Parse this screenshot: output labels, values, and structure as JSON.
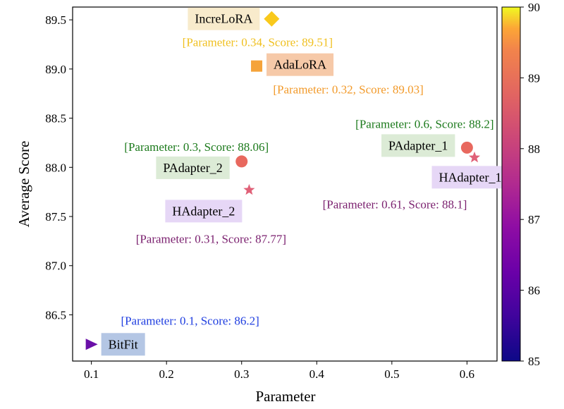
{
  "chart_data": {
    "type": "scatter",
    "xlabel": "Parameter",
    "ylabel": "Average Score",
    "xlim": [
      0.075,
      0.64
    ],
    "ylim": [
      86.03,
      89.63
    ],
    "xticks": [
      "0.1",
      "0.2",
      "0.3",
      "0.4",
      "0.5",
      "0.6"
    ],
    "yticks": [
      "86.5",
      "87.0",
      "87.5",
      "88.0",
      "88.5",
      "89.0",
      "89.5"
    ],
    "grid": false,
    "colorbar": {
      "range": [
        85,
        90
      ],
      "ticks": [
        "85",
        "86",
        "87",
        "88",
        "89",
        "90"
      ],
      "colormap": "plasma"
    },
    "points": [
      {
        "name": "IncreLoRA",
        "x": 0.34,
        "y": 89.51,
        "marker": "diamond",
        "color": "#f9c91c",
        "label_bg": "#f8ebcc",
        "annotation": "[Parameter: 0.34, Score: 89.51]",
        "annotation_color": "#f0c020"
      },
      {
        "name": "AdaLoRA",
        "x": 0.32,
        "y": 89.03,
        "marker": "square",
        "color": "#f5a33a",
        "label_bg": "#f6c9a8",
        "annotation": "[Parameter: 0.32, Score: 89.03]",
        "annotation_color": "#f29a2a"
      },
      {
        "name": "PAdapter_1",
        "x": 0.6,
        "y": 88.2,
        "marker": "circle",
        "color": "#e8685e",
        "label_bg": "#dcebd6",
        "annotation": "[Parameter: 0.6, Score: 88.2]",
        "annotation_color": "#1c7a1c"
      },
      {
        "name": "HAdapter_1",
        "x": 0.61,
        "y": 88.1,
        "marker": "star",
        "color": "#e06178",
        "label_bg": "#e6d7f6",
        "annotation": "[Parameter: 0.61, Score: 88.1]",
        "annotation_color": "#7a1f6e"
      },
      {
        "name": "PAdapter_2",
        "x": 0.3,
        "y": 88.06,
        "marker": "circle",
        "color": "#e8685e",
        "label_bg": "#dcebd6",
        "annotation": "[Parameter: 0.3, Score: 88.06]",
        "annotation_color": "#1c7a1c"
      },
      {
        "name": "HAdapter_2",
        "x": 0.31,
        "y": 87.77,
        "marker": "star",
        "color": "#e06178",
        "label_bg": "#e6d7f6",
        "annotation": "[Parameter: 0.31, Score: 87.77]",
        "annotation_color": "#7a1f6e"
      },
      {
        "name": "BitFit",
        "x": 0.1,
        "y": 86.2,
        "marker": "triangle-right",
        "color": "#6a0fa8",
        "label_bg": "#b4c6e4",
        "annotation": "[Parameter: 0.1, Score: 86.2]",
        "annotation_color": "#1f3ee0"
      }
    ]
  }
}
